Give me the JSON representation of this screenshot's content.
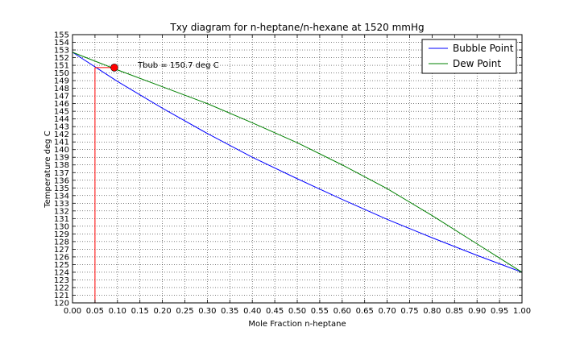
{
  "chart_data": {
    "type": "line",
    "title": "Txy diagram for n-heptane/n-hexane at 1520 mmHg",
    "xlabel": "Mole Fraction n-heptane",
    "ylabel": "Temperature deg C",
    "xlim": [
      0.0,
      1.0
    ],
    "ylim": [
      120,
      155
    ],
    "x_ticks": [
      "0.00",
      "0.05",
      "0.10",
      "0.15",
      "0.20",
      "0.25",
      "0.30",
      "0.35",
      "0.40",
      "0.45",
      "0.50",
      "0.55",
      "0.60",
      "0.65",
      "0.70",
      "0.75",
      "0.80",
      "0.85",
      "0.90",
      "0.95",
      "1.00"
    ],
    "y_ticks": [
      "120",
      "121",
      "122",
      "123",
      "124",
      "125",
      "126",
      "127",
      "128",
      "129",
      "130",
      "131",
      "132",
      "133",
      "134",
      "135",
      "136",
      "137",
      "138",
      "139",
      "140",
      "141",
      "142",
      "143",
      "144",
      "145",
      "146",
      "147",
      "148",
      "149",
      "150",
      "151",
      "152",
      "153",
      "154",
      "155"
    ],
    "grid": true,
    "legend_position": "top-right",
    "series": [
      {
        "name": "Bubble Point",
        "color": "#0000ff",
        "x": [
          0.0,
          0.1,
          0.2,
          0.3,
          0.4,
          0.5,
          0.6,
          0.7,
          0.8,
          0.9,
          1.0
        ],
        "y": [
          152.7,
          148.9,
          145.4,
          142.1,
          139.0,
          136.2,
          133.5,
          130.9,
          128.5,
          126.2,
          124.0
        ]
      },
      {
        "name": "Dew Point",
        "color": "#008000",
        "x": [
          0.0,
          0.1,
          0.2,
          0.3,
          0.4,
          0.5,
          0.6,
          0.7,
          0.8,
          0.9,
          1.0
        ],
        "y": [
          152.7,
          150.4,
          148.2,
          146.0,
          143.5,
          140.9,
          138.0,
          134.9,
          131.4,
          127.7,
          124.0
        ]
      }
    ],
    "annotation": {
      "text": "Tbub = 150.7 deg C",
      "x_anchor": 0.145,
      "y_anchor": 151.0
    },
    "construction": {
      "color": "#ff0000",
      "x_liquid": 0.05,
      "x_vapor": 0.093,
      "temperature": 150.7
    }
  }
}
